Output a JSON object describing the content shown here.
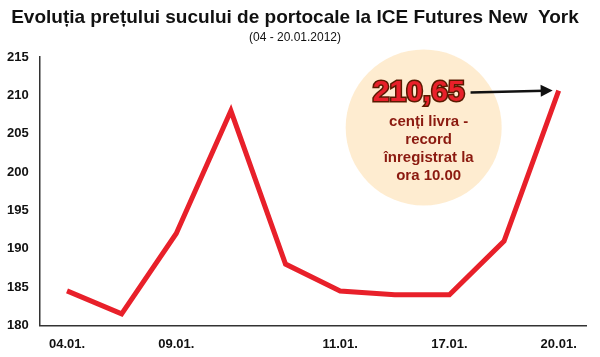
{
  "chart_data": {
    "type": "line",
    "title": "Evoluția prețului sucului de portocale la ICE Futures New  York",
    "subtitle": "(04 - 20.01.2012)",
    "categories": [
      "04.01.",
      null,
      "09.01.",
      null,
      null,
      "11.01.",
      null,
      "17.01.",
      null,
      "20.01."
    ],
    "values": [
      184.5,
      181.5,
      192,
      208,
      188,
      184.5,
      184,
      184,
      191,
      210.65
    ],
    "color": "#e8202a",
    "ylim": [
      180,
      215
    ],
    "yticks": [
      180,
      185,
      190,
      195,
      200,
      205,
      210,
      215
    ],
    "grid": false,
    "annotations": [
      {
        "label": "210,65",
        "value": 210.65,
        "text": "cenți livra - record înregistrat la ora 10.00"
      }
    ]
  }
}
